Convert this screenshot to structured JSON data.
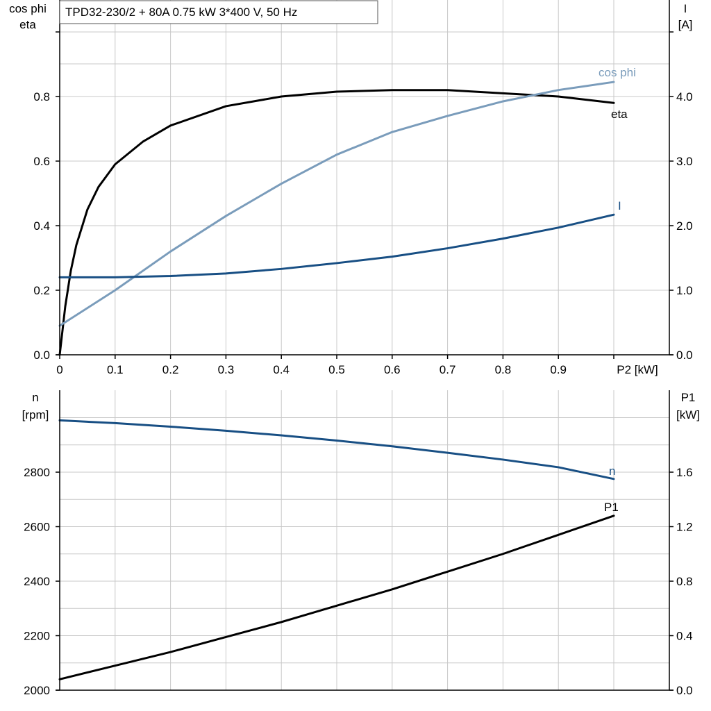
{
  "title": "TPD32-230/2 + 80A   0.75 kW   3*400 V, 50 Hz",
  "colors": {
    "eta": "#000000",
    "cos_phi": "#7a9cbb",
    "I": "#184f84",
    "n": "#184f84",
    "P1": "#000000",
    "grid": "#c8c8c8"
  },
  "chart_data": [
    {
      "type": "line",
      "xlabel": "P2 [kW]",
      "ylabel_left": [
        "cos phi",
        "eta"
      ],
      "ylabel_right": [
        "I",
        "[A]"
      ],
      "xlim": [
        0,
        1.0
      ],
      "ylim_left": [
        0,
        1.0
      ],
      "ylim_right": [
        0,
        5.0
      ],
      "x_ticks": [
        "0",
        "0.1",
        "0.2",
        "0.3",
        "0.4",
        "0.5",
        "0.6",
        "0.7",
        "0.8",
        "0.9"
      ],
      "y_ticks_left": [
        "0.0",
        "0.2",
        "0.4",
        "0.6",
        "0.8"
      ],
      "y_ticks_right": [
        "0.0",
        "1.0",
        "2.0",
        "3.0",
        "4.0"
      ],
      "grid": true,
      "series": [
        {
          "name": "eta",
          "axis": "left",
          "x": [
            0,
            0.01,
            0.02,
            0.03,
            0.05,
            0.07,
            0.1,
            0.15,
            0.2,
            0.3,
            0.4,
            0.5,
            0.6,
            0.7,
            0.8,
            0.9,
            1.0
          ],
          "y": [
            0.0,
            0.15,
            0.26,
            0.34,
            0.45,
            0.52,
            0.59,
            0.66,
            0.71,
            0.77,
            0.8,
            0.815,
            0.82,
            0.82,
            0.81,
            0.8,
            0.78
          ]
        },
        {
          "name": "cos phi",
          "axis": "left",
          "x": [
            0,
            0.1,
            0.2,
            0.3,
            0.4,
            0.5,
            0.6,
            0.7,
            0.8,
            0.9,
            1.0
          ],
          "y": [
            0.09,
            0.2,
            0.32,
            0.43,
            0.53,
            0.62,
            0.69,
            0.74,
            0.785,
            0.82,
            0.845
          ]
        },
        {
          "name": "I",
          "axis": "right",
          "x": [
            0,
            0.1,
            0.2,
            0.3,
            0.4,
            0.5,
            0.6,
            0.7,
            0.8,
            0.9,
            1.0
          ],
          "y": [
            1.2,
            1.2,
            1.22,
            1.26,
            1.33,
            1.42,
            1.52,
            1.65,
            1.8,
            1.97,
            2.17
          ]
        }
      ]
    },
    {
      "type": "line",
      "ylabel_left": [
        "n",
        "[rpm]"
      ],
      "ylabel_right": [
        "P1",
        "[kW]"
      ],
      "xlim": [
        0,
        1.0
      ],
      "ylim_left": [
        2000,
        3100
      ],
      "ylim_right": [
        0.0,
        2.2
      ],
      "y_ticks_left": [
        "2000",
        "2200",
        "2400",
        "2600",
        "2800"
      ],
      "y_ticks_right": [
        "0.0",
        "0.4",
        "0.8",
        "1.2",
        "1.6"
      ],
      "grid": true,
      "series": [
        {
          "name": "n",
          "axis": "left",
          "x": [
            0,
            0.1,
            0.2,
            0.3,
            0.4,
            0.5,
            0.6,
            0.7,
            0.8,
            0.9,
            1.0
          ],
          "y": [
            2990,
            2980,
            2967,
            2952,
            2935,
            2916,
            2895,
            2871,
            2846,
            2818,
            2775
          ]
        },
        {
          "name": "P1",
          "axis": "right",
          "x": [
            0,
            0.1,
            0.2,
            0.3,
            0.4,
            0.5,
            0.6,
            0.7,
            0.8,
            0.9,
            1.0
          ],
          "y": [
            0.08,
            0.18,
            0.28,
            0.39,
            0.5,
            0.62,
            0.74,
            0.87,
            1.0,
            1.14,
            1.28
          ]
        }
      ]
    }
  ]
}
